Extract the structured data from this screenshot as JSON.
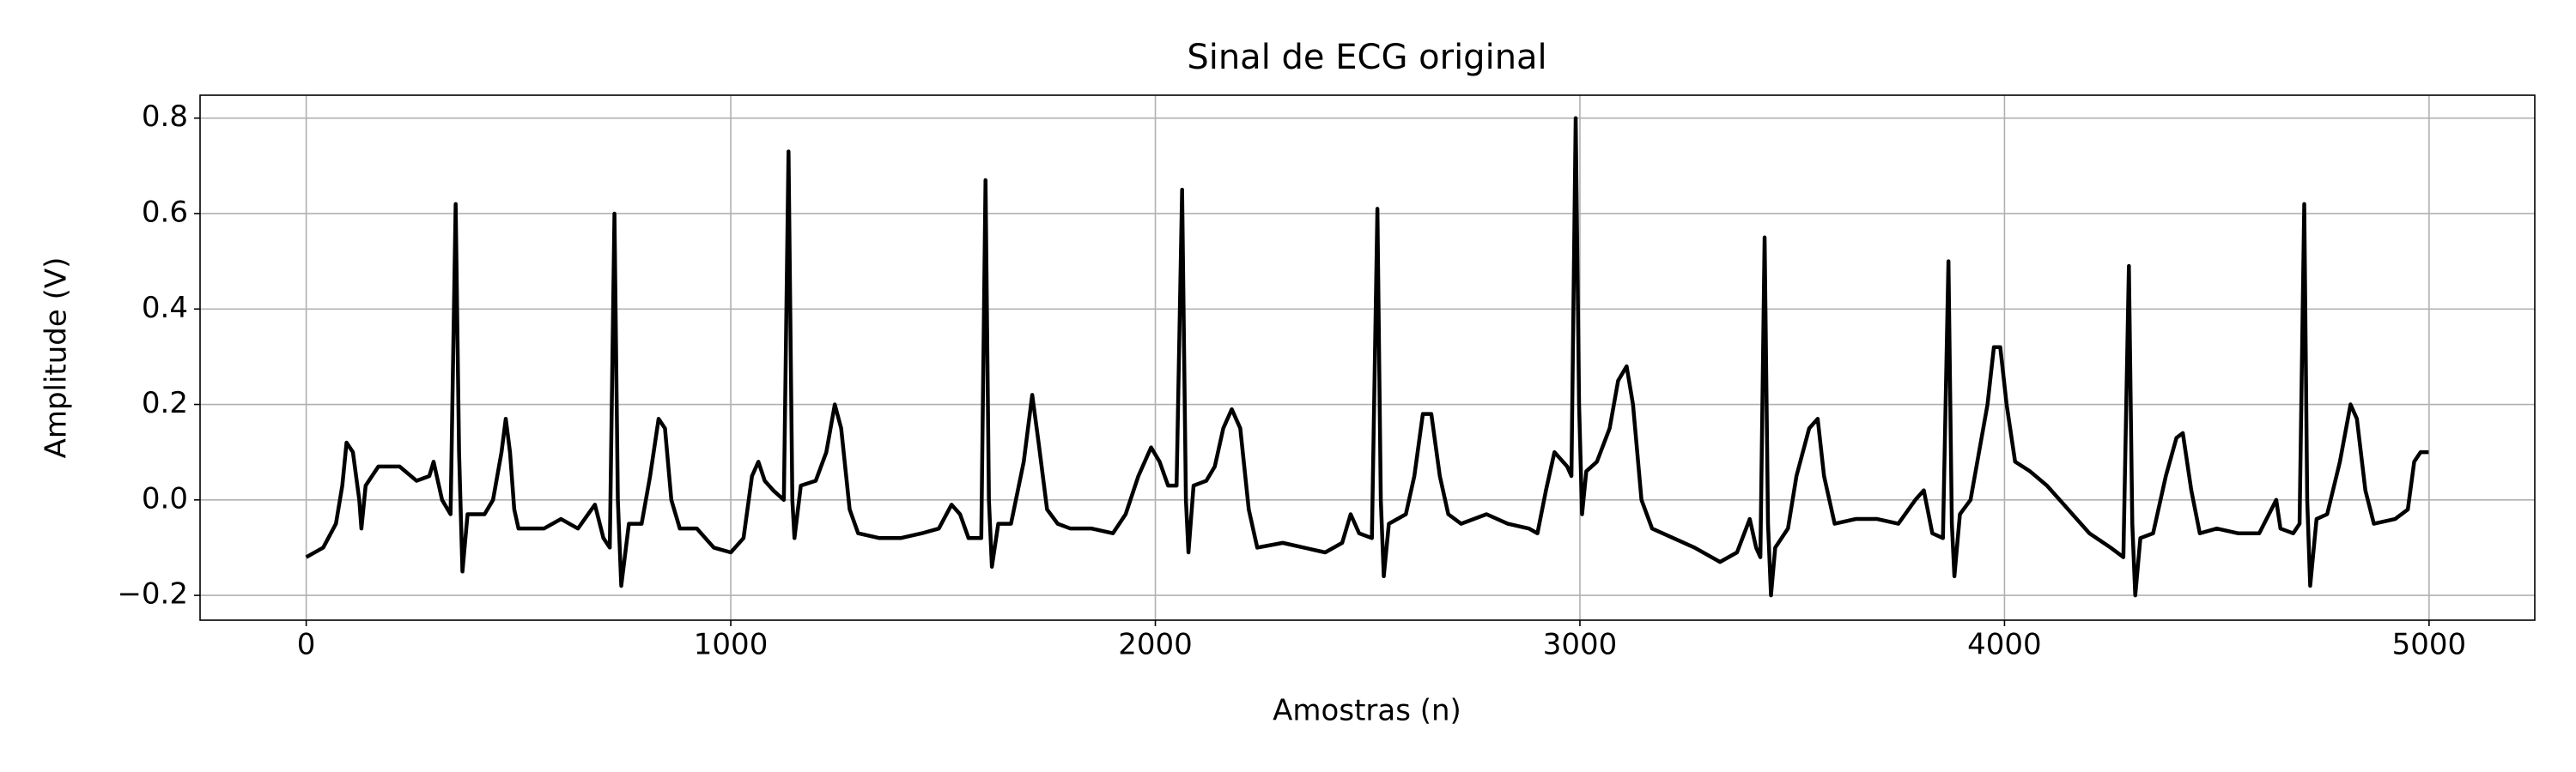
{
  "chart_data": {
    "type": "line",
    "title": "Sinal de ECG original",
    "x_label": "Amostras (n)",
    "y_label": "Amplitude (V)",
    "xlim": [
      -250,
      5249
    ],
    "ylim": [
      -0.252,
      0.848
    ],
    "xticks": [
      0,
      1000,
      2000,
      3000,
      4000,
      5000
    ],
    "yticks": [
      {
        "value": -0.2,
        "label": "−0.2"
      },
      {
        "value": 0,
        "label": "0.0"
      },
      0.2,
      0.4,
      0.6,
      0.8
    ],
    "grid": true,
    "series": [
      {
        "color": "#000000",
        "x": [
          0,
          40,
          70,
          85,
          95,
          110,
          125,
          130,
          140,
          170,
          220,
          260,
          290,
          300,
          320,
          340,
          352,
          360,
          368,
          380,
          420,
          440,
          460,
          470,
          480,
          490,
          500,
          560,
          600,
          640,
          680,
          700,
          715,
          726,
          734,
          742,
          760,
          790,
          810,
          830,
          845,
          860,
          880,
          920,
          960,
          1000,
          1030,
          1050,
          1065,
          1080,
          1100,
          1125,
          1136,
          1145,
          1150,
          1165,
          1200,
          1225,
          1245,
          1260,
          1280,
          1300,
          1350,
          1400,
          1450,
          1490,
          1520,
          1540,
          1560,
          1590,
          1600,
          1608,
          1615,
          1630,
          1660,
          1690,
          1710,
          1725,
          1745,
          1770,
          1800,
          1850,
          1900,
          1930,
          1960,
          1990,
          2010,
          2030,
          2050,
          2063,
          2072,
          2078,
          2090,
          2120,
          2140,
          2160,
          2180,
          2200,
          2220,
          2240,
          2300,
          2350,
          2400,
          2440,
          2460,
          2480,
          2510,
          2523,
          2531,
          2538,
          2550,
          2590,
          2610,
          2630,
          2650,
          2670,
          2690,
          2720,
          2780,
          2830,
          2880,
          2900,
          2920,
          2940,
          2970,
          2980,
          2990,
          2998,
          3005,
          3015,
          3040,
          3070,
          3090,
          3110,
          3125,
          3145,
          3170,
          3220,
          3270,
          3330,
          3370,
          3400,
          3415,
          3425,
          3435,
          3443,
          3450,
          3460,
          3490,
          3510,
          3540,
          3560,
          3575,
          3600,
          3650,
          3700,
          3750,
          3790,
          3810,
          3830,
          3855,
          3868,
          3876,
          3882,
          3895,
          3920,
          3940,
          3960,
          3975,
          3990,
          4005,
          4025,
          4060,
          4100,
          4150,
          4200,
          4250,
          4280,
          4293,
          4301,
          4308,
          4320,
          4350,
          4380,
          4405,
          4420,
          4440,
          4460,
          4500,
          4550,
          4600,
          4640,
          4650,
          4680,
          4695,
          4706,
          4713,
          4720,
          4735,
          4760,
          4790,
          4815,
          4830,
          4850,
          4870,
          4920,
          4950,
          4965,
          4980,
          4999
        ],
        "values": [
          -0.12,
          -0.1,
          -0.05,
          0.03,
          0.12,
          0.1,
          0.0,
          -0.06,
          0.03,
          0.07,
          0.07,
          0.04,
          0.05,
          0.08,
          0.0,
          -0.03,
          0.62,
          0.1,
          -0.15,
          -0.03,
          -0.03,
          0.0,
          0.1,
          0.17,
          0.1,
          -0.02,
          -0.06,
          -0.06,
          -0.04,
          -0.06,
          -0.01,
          -0.08,
          -0.1,
          0.6,
          0.0,
          -0.18,
          -0.05,
          -0.05,
          0.05,
          0.17,
          0.15,
          0.0,
          -0.06,
          -0.06,
          -0.1,
          -0.11,
          -0.08,
          0.05,
          0.08,
          0.04,
          0.02,
          0.0,
          0.73,
          0.0,
          -0.08,
          0.03,
          0.04,
          0.1,
          0.2,
          0.15,
          -0.02,
          -0.07,
          -0.08,
          -0.08,
          -0.07,
          -0.06,
          -0.01,
          -0.03,
          -0.08,
          -0.08,
          0.67,
          0.0,
          -0.14,
          -0.05,
          -0.05,
          0.08,
          0.22,
          0.12,
          -0.02,
          -0.05,
          -0.06,
          -0.06,
          -0.07,
          -0.03,
          0.05,
          0.11,
          0.08,
          0.03,
          0.03,
          0.65,
          0.0,
          -0.11,
          0.03,
          0.04,
          0.07,
          0.15,
          0.19,
          0.15,
          -0.02,
          -0.1,
          -0.09,
          -0.1,
          -0.11,
          -0.09,
          -0.03,
          -0.07,
          -0.08,
          0.61,
          0.0,
          -0.16,
          -0.05,
          -0.03,
          0.05,
          0.18,
          0.18,
          0.05,
          -0.03,
          -0.05,
          -0.03,
          -0.05,
          -0.06,
          -0.07,
          0.02,
          0.1,
          0.07,
          0.05,
          0.8,
          0.2,
          -0.03,
          0.06,
          0.08,
          0.15,
          0.25,
          0.28,
          0.2,
          0.0,
          -0.06,
          -0.08,
          -0.1,
          -0.13,
          -0.11,
          -0.04,
          -0.1,
          -0.12,
          0.55,
          -0.05,
          -0.2,
          -0.1,
          -0.06,
          0.05,
          0.15,
          0.17,
          0.05,
          -0.05,
          -0.04,
          -0.04,
          -0.05,
          0.0,
          0.02,
          -0.07,
          -0.08,
          0.5,
          -0.05,
          -0.16,
          -0.03,
          0.0,
          0.1,
          0.2,
          0.32,
          0.32,
          0.2,
          0.08,
          0.06,
          0.03,
          -0.02,
          -0.07,
          -0.1,
          -0.12,
          0.49,
          -0.05,
          -0.2,
          -0.08,
          -0.07,
          0.05,
          0.13,
          0.14,
          0.02,
          -0.07,
          -0.06,
          -0.07,
          -0.07,
          0.0,
          -0.06,
          -0.07,
          -0.05,
          0.62,
          0.0,
          -0.18,
          -0.04,
          -0.03,
          0.08,
          0.2,
          0.17,
          0.02,
          -0.05,
          -0.04,
          -0.02,
          0.08,
          0.1,
          0.1
        ]
      }
    ]
  }
}
